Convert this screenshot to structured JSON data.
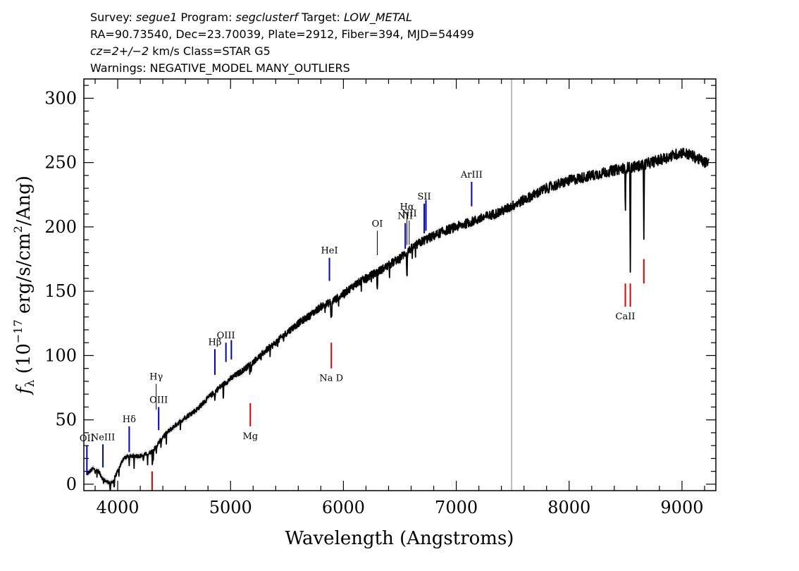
{
  "header": {
    "line1": {
      "survey_label": "Survey: ",
      "survey": "segue1",
      "program_label": " Program: ",
      "program": "segclusterf",
      "target_label": " Target: ",
      "target": "LOW_METAL"
    },
    "line2": "RA=90.73540, Dec=23.70039, Plate=2912, Fiber=394, MJD=54499",
    "line3": {
      "cz": "cz=2+/−2",
      "rest": " km/s Class=STAR G5"
    },
    "line4": "Warnings: NEGATIVE_MODEL MANY_OUTLIERS"
  },
  "chart_data": {
    "type": "line",
    "xlabel": "Wavelength (Angstroms)",
    "ylabel": "fλ (10⁻¹⁷ erg/s/cm²/Ang)",
    "ylabel_parts": {
      "f": "f",
      "lambda": "λ",
      "open": " (10",
      "exp": "−17",
      "mid": " erg/s/cm",
      "sq": "2",
      "close": "/Ang)"
    },
    "xlim": [
      3700,
      9300
    ],
    "ylim": [
      -5,
      315
    ],
    "x_ticks": [
      4000,
      5000,
      6000,
      7000,
      8000,
      9000
    ],
    "y_ticks": [
      0,
      50,
      100,
      150,
      200,
      250,
      300
    ],
    "vertical_marker_x": 7490,
    "colors": {
      "spectrum": "#000000",
      "emission": "#0000cc",
      "absorption": "#dd0000",
      "marker": "#bbbbbb",
      "noise": "#aaaaaa"
    },
    "spectrum_anchors": [
      [
        3730,
        8
      ],
      [
        3780,
        12
      ],
      [
        3830,
        10
      ],
      [
        3870,
        4
      ],
      [
        3900,
        2
      ],
      [
        3950,
        1
      ],
      [
        4000,
        10
      ],
      [
        4050,
        20
      ],
      [
        4100,
        22
      ],
      [
        4200,
        22
      ],
      [
        4280,
        24
      ],
      [
        4330,
        28
      ],
      [
        4400,
        37
      ],
      [
        4500,
        45
      ],
      [
        4600,
        52
      ],
      [
        4700,
        58
      ],
      [
        4800,
        67
      ],
      [
        4900,
        75
      ],
      [
        5000,
        82
      ],
      [
        5100,
        88
      ],
      [
        5200,
        95
      ],
      [
        5300,
        103
      ],
      [
        5400,
        110
      ],
      [
        5500,
        118
      ],
      [
        5600,
        125
      ],
      [
        5700,
        131
      ],
      [
        5800,
        138
      ],
      [
        5900,
        142
      ],
      [
        6000,
        148
      ],
      [
        6100,
        155
      ],
      [
        6200,
        160
      ],
      [
        6300,
        165
      ],
      [
        6400,
        170
      ],
      [
        6500,
        176
      ],
      [
        6600,
        183
      ],
      [
        6700,
        189
      ],
      [
        6800,
        193
      ],
      [
        6900,
        197
      ],
      [
        7000,
        200
      ],
      [
        7200,
        206
      ],
      [
        7400,
        212
      ],
      [
        7600,
        221
      ],
      [
        7800,
        230
      ],
      [
        8000,
        236
      ],
      [
        8200,
        240
      ],
      [
        8400,
        244
      ],
      [
        8500,
        246
      ],
      [
        8600,
        247
      ],
      [
        8800,
        252
      ],
      [
        8900,
        255
      ],
      [
        9000,
        258
      ],
      [
        9100,
        255
      ],
      [
        9200,
        250
      ],
      [
        9240,
        250
      ]
    ],
    "absorption_dips": [
      [
        3934,
        8
      ],
      [
        3969,
        8
      ],
      [
        4102,
        6
      ],
      [
        4227,
        5
      ],
      [
        4308,
        10
      ],
      [
        4341,
        6
      ],
      [
        4384,
        6
      ],
      [
        4861,
        8
      ],
      [
        5170,
        6
      ],
      [
        5183,
        8
      ],
      [
        5270,
        6
      ],
      [
        5890,
        12
      ],
      [
        5896,
        12
      ],
      [
        6300,
        15
      ],
      [
        6563,
        22
      ],
      [
        8498,
        40
      ],
      [
        8542,
        78
      ],
      [
        8662,
        55
      ]
    ],
    "emission_lines": [
      {
        "label": "OII",
        "x": 3727,
        "y0": 7,
        "y1": 30,
        "color": "blue"
      },
      {
        "label": "NeIII",
        "x": 3869,
        "y0": 13,
        "y1": 31,
        "color": "blue"
      },
      {
        "label": "Hδ",
        "x": 4102,
        "y0": 25,
        "y1": 45,
        "color": "blue"
      },
      {
        "label": "Hγ",
        "x": 4341,
        "y0": 58,
        "y1": 78,
        "color": "thin"
      },
      {
        "label": "OIII",
        "x": 4363,
        "y0": 42,
        "y1": 60,
        "color": "blue"
      },
      {
        "label": "Hβ",
        "x": 4861,
        "y0": 85,
        "y1": 105,
        "color": "blue"
      },
      {
        "label": "OIII",
        "x": 4959,
        "y0": 95,
        "y1": 110,
        "color": "blue"
      },
      {
        "label": "",
        "x": 5007,
        "y0": 97,
        "y1": 112,
        "color": "blue"
      },
      {
        "label": "HeI",
        "x": 5876,
        "y0": 158,
        "y1": 176,
        "color": "blue"
      },
      {
        "label": "OI",
        "x": 6300,
        "y0": 178,
        "y1": 197,
        "color": "thin"
      },
      {
        "label": "NII",
        "x": 6548,
        "y0": 183,
        "y1": 203,
        "color": "blue"
      },
      {
        "label": "Hα",
        "x": 6563,
        "y0": 186,
        "y1": 210,
        "color": "thin"
      },
      {
        "label": "NII",
        "x": 6583,
        "y0": 186,
        "y1": 205,
        "color": "thin"
      },
      {
        "label": "SII",
        "x": 6716,
        "y0": 195,
        "y1": 218,
        "color": "blue"
      },
      {
        "label": "",
        "x": 6731,
        "y0": 197,
        "y1": 221,
        "color": "blue"
      },
      {
        "label": "ArIII",
        "x": 7136,
        "y0": 216,
        "y1": 235,
        "color": "blue"
      }
    ],
    "absorption_lines": [
      {
        "label": "Mg",
        "x": 5175,
        "y0": 45,
        "y1": 63
      },
      {
        "label": "Na D",
        "x": 5893,
        "y0": 90,
        "y1": 110
      },
      {
        "label": "",
        "x": 4305,
        "y0": -5,
        "y1": 10
      },
      {
        "label": "CaII",
        "x": 8498,
        "y0": 138,
        "y1": 156
      },
      {
        "label": "",
        "x": 8542,
        "y0": 138,
        "y1": 156
      },
      {
        "label": "",
        "x": 8662,
        "y0": 156,
        "y1": 175
      }
    ]
  }
}
